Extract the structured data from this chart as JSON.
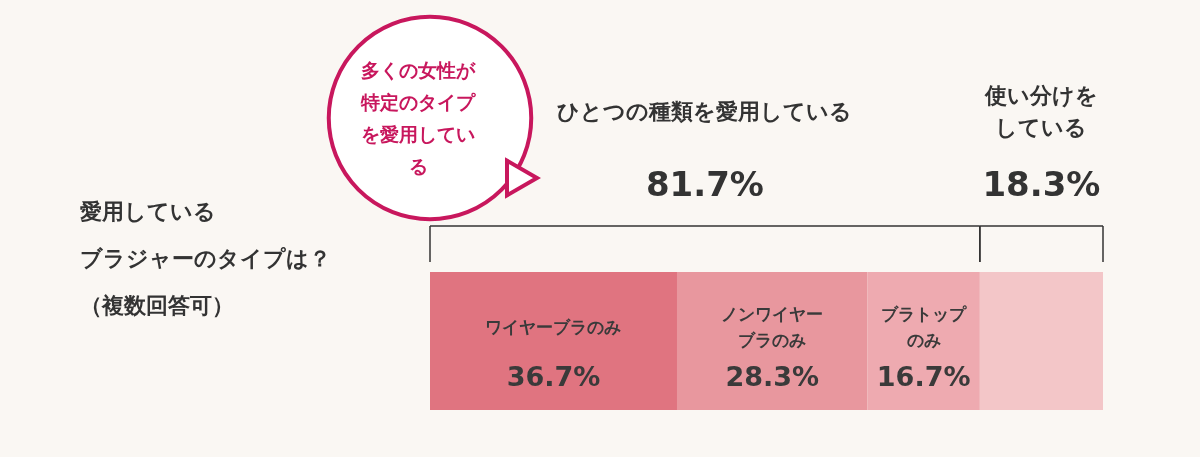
{
  "chart_data": {
    "type": "bar",
    "orientation": "horizontal",
    "stacked": true,
    "title": "愛用しているブラジャーのタイプは？（複数回答可）",
    "categories": [
      null
    ],
    "xlim": [
      0,
      100
    ],
    "tick_labels": false,
    "series": [
      {
        "name": "ワイヤーブラのみ",
        "color": "#e07480",
        "values": [
          36.7
        ],
        "value_labels": [
          "36.7%"
        ]
      },
      {
        "name": "ノンワイヤーブラのみ",
        "color": "#e8979e",
        "values": [
          28.3
        ],
        "value_labels": [
          "28.3%"
        ]
      },
      {
        "name": "ブラトップのみ",
        "color": "#eeaab0",
        "values": [
          16.7
        ],
        "value_labels": [
          "16.7%"
        ]
      },
      {
        "color": "#f3c6c8",
        "values": [
          18.3
        ],
        "value_labels": [
          null
        ]
      }
    ],
    "annotations": [
      "ひとつの種類を愛用している",
      "81.7%",
      "使い分けをしている",
      "18.3%",
      "多くの女性が特定のタイプを愛用している"
    ]
  }
}
